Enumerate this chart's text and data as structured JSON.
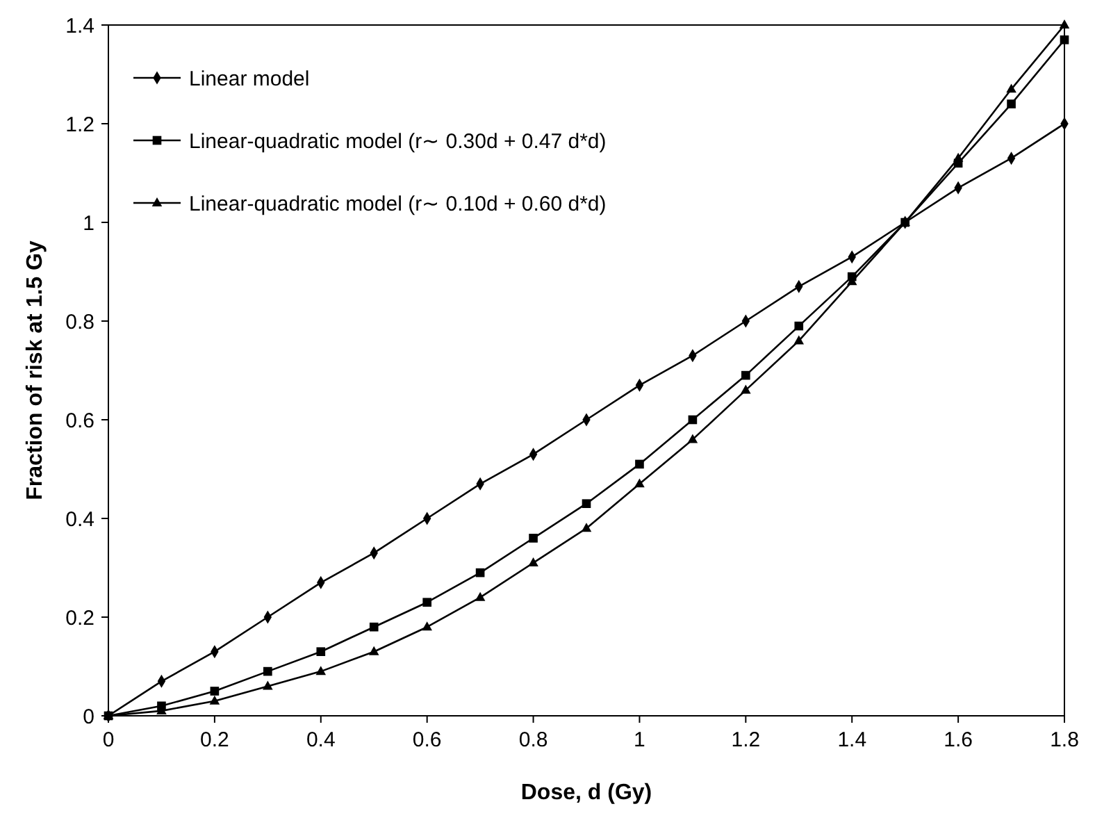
{
  "chart_data": {
    "type": "line",
    "xlabel": "Dose, d (Gy)",
    "ylabel": "Fraction of risk at 1.5 Gy",
    "x": [
      0,
      0.1,
      0.2,
      0.3,
      0.4,
      0.5,
      0.6,
      0.7,
      0.8,
      0.9,
      1,
      1.1,
      1.2,
      1.3,
      1.4,
      1.5,
      1.6,
      1.7,
      1.8
    ],
    "series": [
      {
        "name": "Linear model",
        "color": "#000000",
        "marker": "diamond",
        "values": [
          0,
          0.07,
          0.13,
          0.2,
          0.27,
          0.33,
          0.4,
          0.47,
          0.53,
          0.6,
          0.67,
          0.73,
          0.8,
          0.87,
          0.93,
          1,
          1.07,
          1.13,
          1.2
        ]
      },
      {
        "name": "Linear-quadratic model (r∼ 0.30d + 0.47 d*d)",
        "color": "#000000",
        "marker": "square",
        "values": [
          0,
          0.02,
          0.05,
          0.09,
          0.13,
          0.18,
          0.23,
          0.29,
          0.36,
          0.43,
          0.51,
          0.6,
          0.69,
          0.79,
          0.89,
          1,
          1.12,
          1.24,
          1.37
        ]
      },
      {
        "name": "Linear-quadratic model (r∼ 0.10d + 0.60 d*d)",
        "color": "#000000",
        "marker": "triangle",
        "values": [
          0,
          0.01,
          0.03,
          0.06,
          0.09,
          0.13,
          0.18,
          0.24,
          0.31,
          0.38,
          0.47,
          0.56,
          0.66,
          0.76,
          0.88,
          1,
          1.13,
          1.27,
          1.4
        ]
      }
    ],
    "xlim": [
      0,
      1.8
    ],
    "xticks": [
      0,
      0.2,
      0.4,
      0.6,
      0.8,
      1,
      1.2,
      1.4,
      1.6,
      1.8
    ],
    "ylim": [
      0,
      1.4
    ],
    "yticks": [
      0,
      0.2,
      0.4,
      0.6,
      0.8,
      1,
      1.2,
      1.4
    ],
    "grid": false,
    "legend": "top left",
    "line_style": "solid"
  }
}
